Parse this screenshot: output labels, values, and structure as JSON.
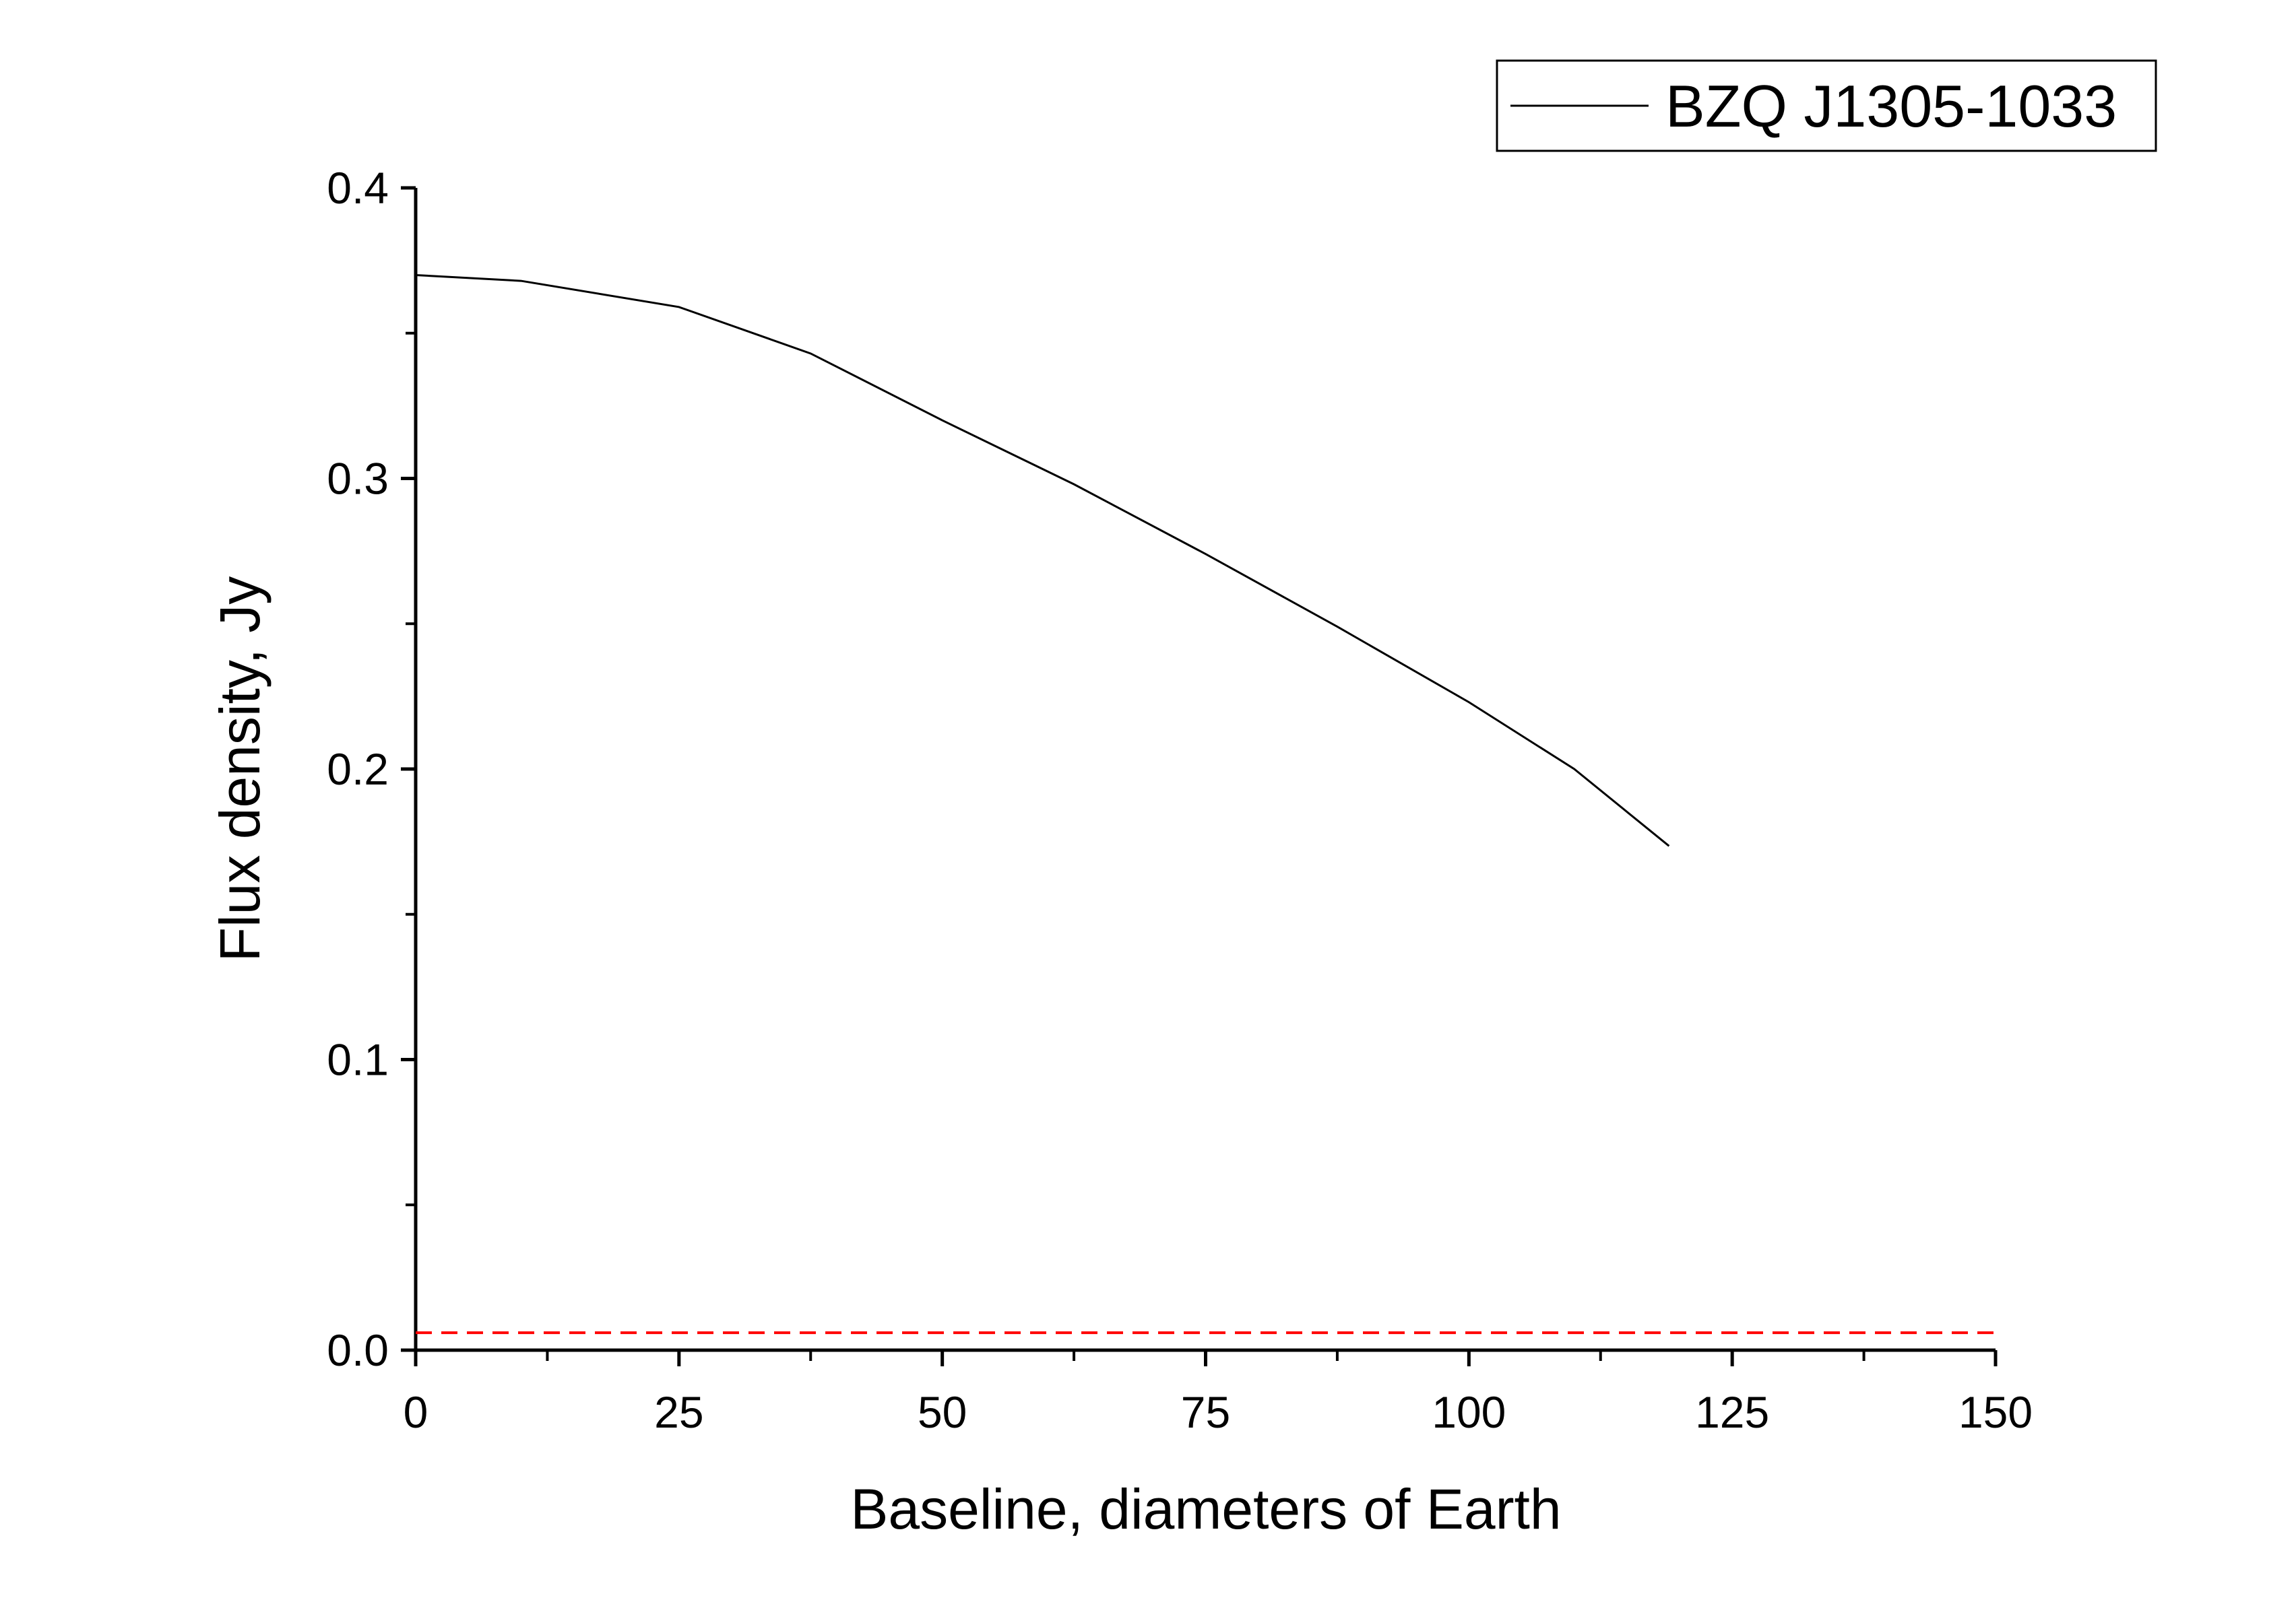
{
  "chart_data": {
    "type": "line",
    "xlabel": "Baseline, diameters of Earth",
    "ylabel": "Flux density, Jy",
    "x": [
      0,
      10,
      25,
      37.5,
      50,
      62.5,
      75,
      87.5,
      100,
      110,
      119
    ],
    "series": [
      {
        "name": "BZQ J1305-1033",
        "color": "#000000",
        "values": [
          0.37,
          0.368,
          0.359,
          0.343,
          0.32,
          0.298,
          0.274,
          0.249,
          0.223,
          0.2,
          0.1735
        ]
      }
    ],
    "hline": {
      "value": 0.006,
      "color": "#ff0000",
      "dashed": true
    },
    "xlim": [
      0,
      150
    ],
    "xticks": [
      0,
      25,
      50,
      75,
      100,
      125,
      150
    ],
    "ylim": [
      0,
      0.4
    ],
    "yticks": [
      {
        "value": 0,
        "label": "0.0"
      },
      0.1,
      0.2,
      0.3,
      0.4
    ],
    "minor_ticks": true,
    "grid": false,
    "legend": "upper right"
  }
}
